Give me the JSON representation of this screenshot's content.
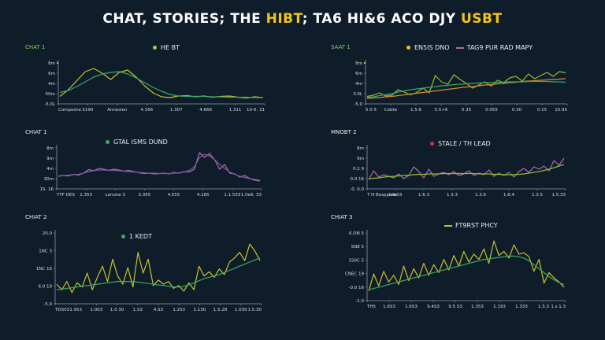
{
  "title": {
    "pre": "CHAT, STORIES; THE ",
    "accent": "HIBT",
    "mid": "; TA6 HI&6 ACO DJY ",
    "accent2": "USBT"
  },
  "colors": {
    "yellow": "#c9c12a",
    "green": "#39a86b",
    "pink": "#b06aa8",
    "orange": "#d98b2b",
    "red": "#e03030"
  },
  "chart_data": [
    {
      "id": "p1",
      "type": "line",
      "label": "CHAT 1",
      "legend": [
        {
          "name": "HE BT",
          "color": "#7ed957",
          "marker": "dot"
        }
      ],
      "yticks": [
        "8m",
        "6m",
        "4m",
        "50m",
        "-5.0L"
      ],
      "xticks": [
        "Composhe",
        "S190",
        "Annesion",
        "4.166",
        "1.307",
        "4.666",
        "1.311",
        "10-6. 31"
      ],
      "ylim": [
        0,
        10
      ],
      "series": [
        {
          "color": "#c9c12a",
          "values": [
            1.5,
            3.2,
            5.5,
            7.8,
            8.6,
            7.4,
            5.8,
            7.6,
            8.2,
            6.4,
            4.2,
            2.4,
            1.4,
            1.2,
            1.6,
            1.7,
            1.4,
            1.6,
            1.3,
            1.5,
            1.6,
            1.3,
            1.1,
            1.4,
            1.2
          ]
        },
        {
          "color": "#39a86b",
          "values": [
            2.5,
            3.0,
            4.0,
            5.2,
            6.4,
            7.2,
            7.6,
            7.8,
            7.2,
            6.2,
            5.0,
            3.8,
            2.8,
            2.0,
            1.6,
            1.5,
            1.5,
            1.5,
            1.4,
            1.4,
            1.3,
            1.3,
            1.3,
            1.2,
            1.2
          ]
        }
      ]
    },
    {
      "id": "p2",
      "type": "line",
      "label": "SAAT 1",
      "legend": [
        {
          "name": "EN5IS DNO",
          "color": "#f0c419",
          "marker": "dot"
        },
        {
          "name": "TAG9 PUR RAD MAPY",
          "color": "#b06aa8",
          "marker": "line"
        }
      ],
      "yticks": [
        "8m",
        "6m",
        "4m",
        "3.0L",
        "-5.0"
      ],
      "xticks": [
        "5.0 5",
        "Cebte",
        "1.5.6",
        "5.5+6",
        "0.35",
        "0.055",
        "0.30",
        "0.15",
        "10.95"
      ],
      "ylim": [
        0,
        10
      ],
      "series": [
        {
          "color": "#8fbf2a",
          "values": [
            1.5,
            1.8,
            2.4,
            1.6,
            1.8,
            3.2,
            2.6,
            1.9,
            2.5,
            3.6,
            2.4,
            6.8,
            5.2,
            4.6,
            7.0,
            5.8,
            4.8,
            3.6,
            4.4,
            5.2,
            4.1,
            5.6,
            5.0,
            6.2,
            6.6,
            5.4,
            7.2,
            6.0,
            6.8,
            7.6,
            6.6,
            7.8,
            7.5
          ]
        },
        {
          "color": "#d98b2b",
          "values": [
            1.0,
            1.1,
            1.2,
            1.4,
            1.5,
            1.7,
            1.9,
            2.1,
            2.3,
            2.5,
            2.7,
            2.9,
            3.1,
            3.3,
            3.5,
            3.7,
            3.9,
            4.0,
            4.2,
            4.4,
            4.5,
            4.7,
            4.8,
            5.0,
            5.1,
            5.3,
            5.4,
            5.5,
            5.6,
            5.7,
            5.8,
            5.9,
            6.0
          ]
        },
        {
          "color": "#39a86b",
          "values": [
            1.2,
            1.4,
            1.7,
            2.0,
            2.2,
            2.6,
            2.9,
            3.2,
            3.4,
            3.6,
            3.8,
            4.0,
            4.2,
            4.3,
            4.5,
            4.6,
            4.7,
            4.8,
            4.9,
            5.0,
            5.0,
            5.1,
            5.1,
            5.2,
            5.2,
            5.2,
            5.3,
            5.3,
            5.3,
            5.3,
            5.2,
            5.2,
            5.1
          ]
        }
      ]
    },
    {
      "id": "p3",
      "type": "line",
      "label": "CHIAT 1",
      "legend": [
        {
          "name": "GTAL ISMS DUND",
          "color": "#39a86b",
          "marker": "dot"
        }
      ],
      "yticks": [
        "8m",
        "9m",
        "4m",
        "30m",
        "1S. 16"
      ],
      "xticks": [
        "YTF DES",
        "1.353",
        "Lenone 3",
        "3.355",
        "4.655",
        "4.185",
        "1.1.533",
        "1.0e6. 33"
      ],
      "ylim": [
        0,
        10
      ],
      "series": [
        {
          "color": "#b06aa8",
          "values": [
            2.8,
            3.0,
            2.9,
            3.3,
            3.1,
            3.6,
            4.5,
            4.2,
            4.8,
            4.6,
            4.3,
            4.6,
            4.4,
            4.1,
            4.3,
            4.0,
            3.7,
            3.5,
            3.6,
            3.4,
            3.5,
            3.6,
            3.4,
            3.8,
            3.6,
            4.0,
            3.9,
            4.6,
            8.8,
            7.6,
            8.6,
            7.0,
            4.6,
            5.8,
            3.6,
            3.4,
            2.6,
            3.0,
            2.2,
            1.8,
            1.6
          ]
        },
        {
          "color": "#7a5a9c",
          "values": [
            2.9,
            3.0,
            3.1,
            3.2,
            3.3,
            3.6,
            4.0,
            4.2,
            4.4,
            4.4,
            4.3,
            4.3,
            4.2,
            4.1,
            4.0,
            3.9,
            3.8,
            3.7,
            3.6,
            3.6,
            3.5,
            3.5,
            3.5,
            3.6,
            3.7,
            3.9,
            4.3,
            5.2,
            7.6,
            8.4,
            8.0,
            7.0,
            5.8,
            4.8,
            3.9,
            3.3,
            2.8,
            2.5,
            2.2,
            2.0,
            1.8
          ]
        }
      ]
    },
    {
      "id": "p4",
      "type": "line",
      "label": "MNOBT 2",
      "legend": [
        {
          "name": "STALE / TH LEAD",
          "color": "#e03030",
          "marker": "dot"
        }
      ],
      "yticks": [
        "8m",
        "9m",
        "0.2 9",
        "0.0 16",
        "-0. 0.0"
      ],
      "xticks": [
        "T H  Besppstie",
        "Leb03",
        "1.6.3",
        "1.3.3",
        "1.3.6",
        "1.6.4",
        "1.3.5",
        "1.5.33"
      ],
      "ylim": [
        0,
        10
      ],
      "series": [
        {
          "color": "#b06aa8",
          "values": [
            2.0,
            4.2,
            2.6,
            3.2,
            2.8,
            2.4,
            3.4,
            2.2,
            3.0,
            5.2,
            4.0,
            2.4,
            4.6,
            2.8,
            3.4,
            3.8,
            3.2,
            4.0,
            3.0,
            3.4,
            4.2,
            3.0,
            3.6,
            3.2,
            4.4,
            2.8,
            3.6,
            3.0,
            3.8,
            2.6,
            4.0,
            4.8,
            3.8,
            5.2,
            4.6,
            5.4,
            4.2,
            6.8,
            5.6,
            7.4
          ]
        },
        {
          "color": "#8fbf2a",
          "values": [
            2.2,
            2.3,
            2.4,
            2.6,
            2.7,
            2.8,
            2.9,
            3.0,
            3.1,
            3.2,
            3.3,
            3.3,
            3.4,
            3.4,
            3.4,
            3.5,
            3.5,
            3.5,
            3.5,
            3.5,
            3.5,
            3.5,
            3.4,
            3.4,
            3.4,
            3.3,
            3.3,
            3.2,
            3.2,
            3.2,
            3.3,
            3.4,
            3.6,
            3.8,
            4.0,
            4.3,
            4.6,
            5.0,
            5.4,
            5.8
          ]
        }
      ]
    },
    {
      "id": "p5",
      "type": "line",
      "label": "CHIAT 2",
      "legend": [
        {
          "name": "1 KEDT",
          "color": "#39a86b",
          "marker": "dot"
        }
      ],
      "yticks": [
        "20.0",
        "1NC 3",
        "1NC 16",
        "6.0 19",
        "-5.0"
      ],
      "xticks": [
        "TDS03",
        "1.953",
        "1.003",
        "1.0 30",
        "1.S3",
        "4.S3",
        "1.253",
        "1.130",
        "1.5.28",
        "1.030",
        "1.5.30"
      ],
      "ylim": [
        0,
        10
      ],
      "series": [
        {
          "color": "#c9c12a",
          "values": [
            2.6,
            1.8,
            3.0,
            1.4,
            2.8,
            2.2,
            4.2,
            1.8,
            3.6,
            5.2,
            3.0,
            6.2,
            3.8,
            2.6,
            5.0,
            2.2,
            7.2,
            4.2,
            6.2,
            2.4,
            3.2,
            2.6,
            3.0,
            2.0,
            2.4,
            1.6,
            2.8,
            1.8,
            5.2,
            3.8,
            4.4,
            3.6,
            4.8,
            4.0,
            5.8,
            6.4,
            7.2,
            6.0,
            8.4,
            7.4,
            6.0
          ]
        },
        {
          "color": "#39a86b",
          "values": [
            1.8,
            1.9,
            2.0,
            2.1,
            2.2,
            2.3,
            2.4,
            2.5,
            2.6,
            2.7,
            2.8,
            2.9,
            3.0,
            3.0,
            3.0,
            3.0,
            2.9,
            2.8,
            2.7,
            2.6,
            2.5,
            2.4,
            2.3,
            2.2,
            2.2,
            2.3,
            2.5,
            2.8,
            3.1,
            3.4,
            3.6,
            3.8,
            4.0,
            4.3,
            4.6,
            4.9,
            5.2,
            5.5,
            5.8,
            6.1,
            6.4
          ]
        }
      ]
    },
    {
      "id": "p6",
      "type": "line",
      "label": "CHIAT 3",
      "legend": [
        {
          "name": "FT9RST PHCY",
          "color": "#c9c12a",
          "marker": "line"
        }
      ],
      "yticks": [
        "6.ON 5",
        "SN8 5",
        "1S0C 5",
        "CNEC 19",
        "-0.0 16",
        "-1.0"
      ],
      "xticks": [
        "TH5",
        "1.6S3",
        "1.6S3",
        "9.4S3",
        "9.5 S3",
        "1.353",
        "1.193",
        "1.333",
        "1.5.3",
        "1.s 1.3"
      ],
      "ylim": [
        0,
        10
      ],
      "series": [
        {
          "color": "#c9c12a",
          "values": [
            1.2,
            3.8,
            2.0,
            4.2,
            2.6,
            3.6,
            2.2,
            5.0,
            2.8,
            4.6,
            3.2,
            5.4,
            3.6,
            5.2,
            4.0,
            6.0,
            4.4,
            6.6,
            5.0,
            7.2,
            5.6,
            6.8,
            6.0,
            7.6,
            5.4,
            8.8,
            6.6,
            7.2,
            6.2,
            8.2,
            6.8,
            7.0,
            6.4,
            4.2,
            6.0,
            2.4,
            4.0,
            3.2,
            2.6,
            1.8
          ]
        },
        {
          "color": "#39a86b",
          "values": [
            1.4,
            1.6,
            1.8,
            2.0,
            2.2,
            2.4,
            2.6,
            2.8,
            3.0,
            3.2,
            3.4,
            3.6,
            3.8,
            4.0,
            4.2,
            4.4,
            4.6,
            4.8,
            5.0,
            5.2,
            5.4,
            5.6,
            5.8,
            6.0,
            6.1,
            6.2,
            6.3,
            6.4,
            6.5,
            6.5,
            6.4,
            6.2,
            5.8,
            5.2,
            4.6,
            4.0,
            3.4,
            2.9,
            2.5,
            2.2
          ]
        }
      ]
    }
  ]
}
